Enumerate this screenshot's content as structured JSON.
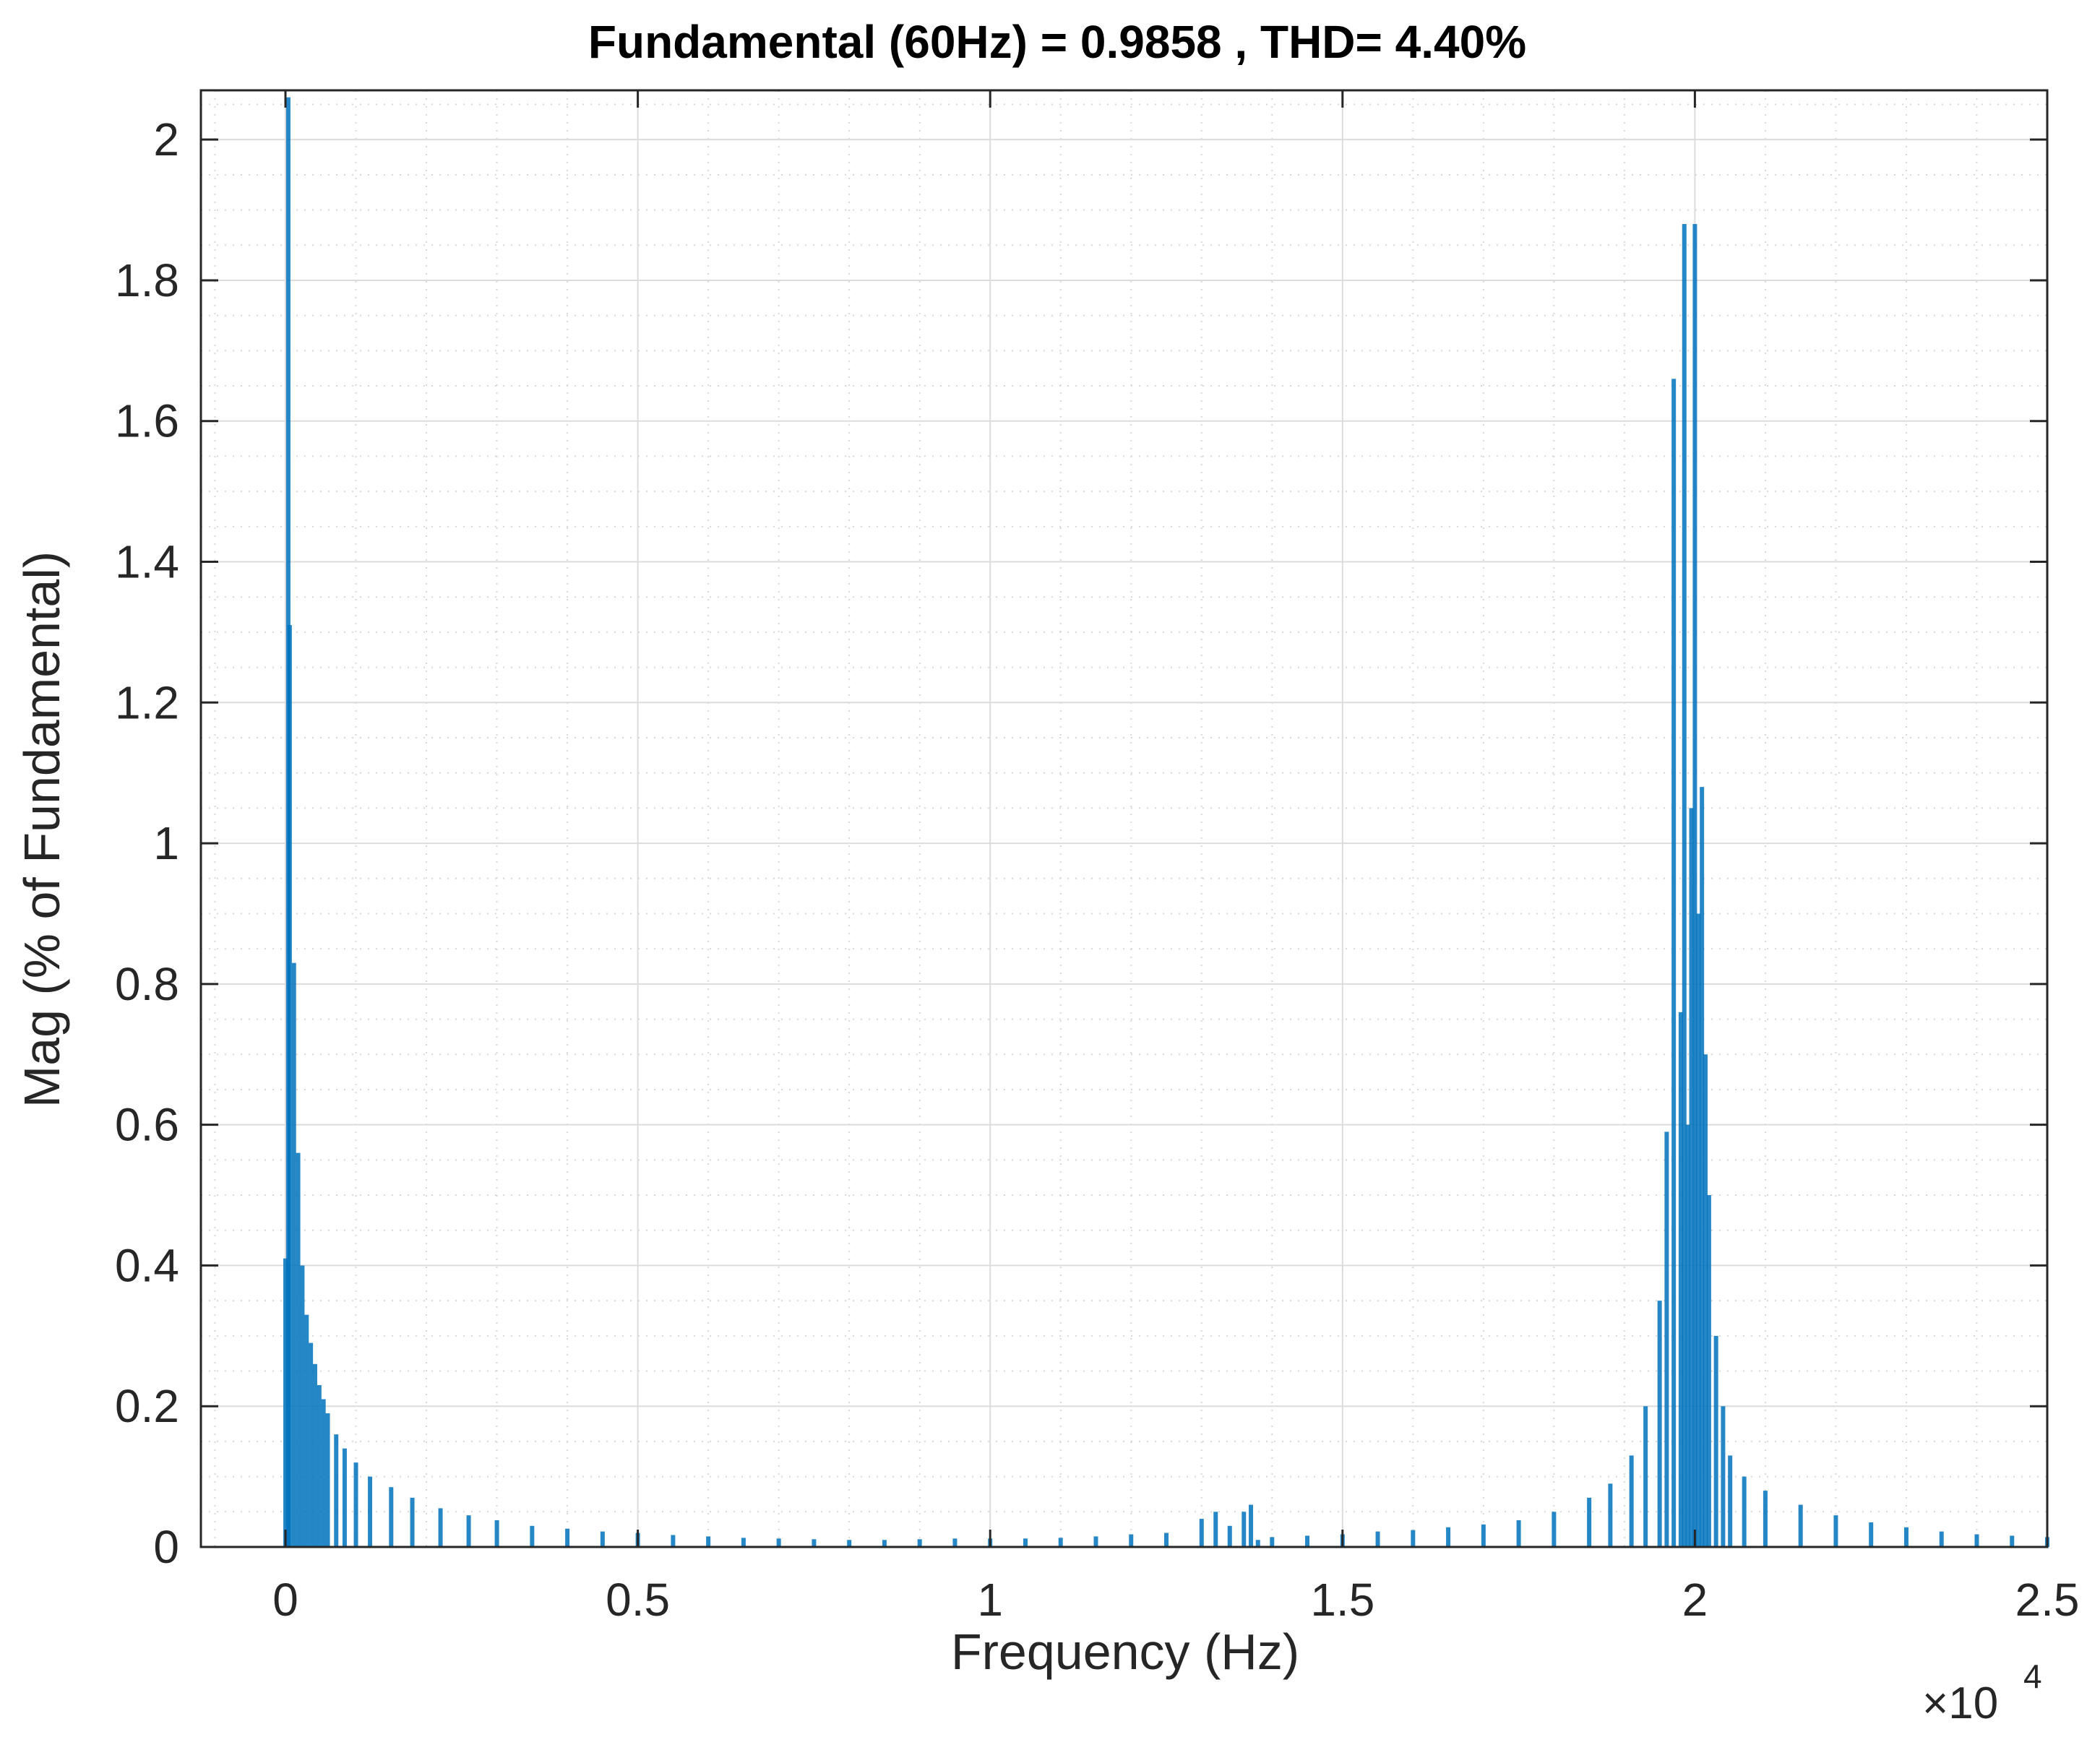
{
  "chart_data": {
    "type": "bar",
    "title": "Fundamental (60Hz) = 0.9858 , THD= 4.40%",
    "xlabel": "Frequency (Hz)",
    "ylabel": "Mag (% of Fundamental)",
    "x_exponent_label": "×10",
    "x_exponent_power": "4",
    "xlim": [
      -0.12,
      2.5
    ],
    "ylim": [
      0,
      2.07
    ],
    "x_scale_note": "x values in units of 10^4 Hz",
    "x_ticks": [
      0,
      0.5,
      1,
      1.5,
      2,
      2.5
    ],
    "x_tick_labels": [
      "0",
      "0.5",
      "1",
      "1.5",
      "2",
      "2.5"
    ],
    "y_ticks": [
      0,
      0.2,
      0.4,
      0.6,
      0.8,
      1,
      1.2,
      1.4,
      1.6,
      1.8,
      2
    ],
    "y_tick_labels": [
      "0",
      "0.2",
      "0.4",
      "0.6",
      "0.8",
      "1",
      "1.2",
      "1.4",
      "1.6",
      "1.8",
      "2"
    ],
    "grid": true,
    "minor_grid": true,
    "bar_color": "#0072BD",
    "series": [
      {
        "x": [
          0.0,
          0.004,
          0.006,
          0.012,
          0.018,
          0.024,
          0.03,
          0.036,
          0.042,
          0.048,
          0.054,
          0.06,
          0.072,
          0.084,
          0.1,
          0.12,
          0.15,
          0.18,
          0.22,
          0.26,
          0.3,
          0.35,
          0.4,
          0.45,
          0.5,
          0.55,
          0.6,
          0.65,
          0.7,
          0.75,
          0.8,
          0.85,
          0.9,
          0.95,
          1.0,
          1.05,
          1.1,
          1.15,
          1.2,
          1.25,
          1.3,
          1.32,
          1.34,
          1.36,
          1.37,
          1.38,
          1.4,
          1.45,
          1.5,
          1.55,
          1.6,
          1.65,
          1.7,
          1.75,
          1.8,
          1.85,
          1.88,
          1.91,
          1.93,
          1.95,
          1.96,
          1.97,
          1.98,
          1.985,
          1.99,
          1.995,
          2.0,
          2.005,
          2.01,
          2.015,
          2.02,
          2.03,
          2.04,
          2.05,
          2.07,
          2.1,
          2.15,
          2.2,
          2.25,
          2.3,
          2.35,
          2.4,
          2.45,
          2.5
        ],
        "values": [
          0.41,
          2.06,
          1.31,
          0.83,
          0.56,
          0.4,
          0.33,
          0.29,
          0.26,
          0.23,
          0.21,
          0.19,
          0.16,
          0.14,
          0.12,
          0.1,
          0.085,
          0.07,
          0.055,
          0.045,
          0.038,
          0.03,
          0.026,
          0.022,
          0.02,
          0.017,
          0.015,
          0.013,
          0.012,
          0.011,
          0.01,
          0.01,
          0.011,
          0.012,
          0.012,
          0.012,
          0.013,
          0.015,
          0.018,
          0.02,
          0.04,
          0.05,
          0.03,
          0.05,
          0.06,
          0.01,
          0.014,
          0.016,
          0.018,
          0.022,
          0.024,
          0.028,
          0.032,
          0.038,
          0.05,
          0.07,
          0.09,
          0.13,
          0.2,
          0.35,
          0.59,
          1.66,
          0.76,
          1.88,
          0.6,
          1.05,
          1.88,
          0.9,
          1.08,
          0.7,
          0.5,
          0.3,
          0.2,
          0.13,
          0.1,
          0.08,
          0.06,
          0.045,
          0.035,
          0.028,
          0.022,
          0.018,
          0.016,
          0.014
        ]
      }
    ]
  }
}
